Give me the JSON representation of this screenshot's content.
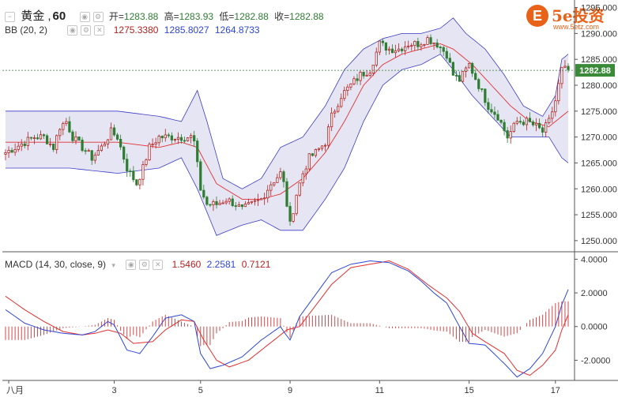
{
  "header": {
    "symbol": "黄金",
    "timeframe": "60",
    "open_label": "开=",
    "open": "1283.88",
    "high_label": "高=",
    "high": "1283.93",
    "low_label": "低=",
    "low": "1282.88",
    "close_label": "收=",
    "close": "1282.88"
  },
  "bb_header": {
    "label": "BB (20, 2)",
    "mid": "1275.3380",
    "upper": "1285.8027",
    "lower": "1264.8733"
  },
  "macd_header": {
    "label": "MACD (14, 30, close, 9)",
    "hist": "1.5460",
    "macd": "2.2581",
    "signal": "0.7121"
  },
  "logo": {
    "text": "5e投资",
    "url": "www.5etz.com",
    "mark": "E"
  },
  "price_tag": "1282.88",
  "colors": {
    "up": "#b22222",
    "down": "#2e7d32",
    "bb_fill": "#dcdcef",
    "bb_band": "#3c3cc8",
    "bb_mid": "#e33030",
    "macd_line": "#2d46d6",
    "signal_line": "#e33030",
    "hist": "#d24848",
    "accent": "#2e7d32"
  },
  "chart_data": [
    {
      "type": "candlestick",
      "yticks": [
        1250,
        1255,
        1260,
        1265,
        1270,
        1275,
        1280,
        1285,
        1290,
        1295
      ],
      "ylim": [
        1248,
        1296
      ],
      "xlabels": [
        {
          "label": "八月",
          "x": 1
        },
        {
          "label": "3",
          "x": 34
        },
        {
          "label": "5",
          "x": 61
        },
        {
          "label": "9",
          "x": 89
        },
        {
          "label": "11",
          "x": 117
        },
        {
          "label": "15",
          "x": 145
        },
        {
          "label": "17",
          "x": 172
        }
      ],
      "last_price": 1282.88,
      "anchors_close": [
        [
          0,
          1267
        ],
        [
          3,
          1268
        ],
        [
          6,
          1269
        ],
        [
          9,
          1270
        ],
        [
          12,
          1270
        ],
        [
          15,
          1268
        ],
        [
          17,
          1272
        ],
        [
          19,
          1273
        ],
        [
          21,
          1270
        ],
        [
          24,
          1268
        ],
        [
          27,
          1266
        ],
        [
          30,
          1268
        ],
        [
          33,
          1271
        ],
        [
          35,
          1270
        ],
        [
          38,
          1264
        ],
        [
          41,
          1261
        ],
        [
          43,
          1264
        ],
        [
          45,
          1268
        ],
        [
          48,
          1270
        ],
        [
          52,
          1270
        ],
        [
          55,
          1270
        ],
        [
          58,
          1270
        ],
        [
          59,
          1269
        ],
        [
          61,
          1260
        ],
        [
          63,
          1257
        ],
        [
          66,
          1257
        ],
        [
          69,
          1258
        ],
        [
          72,
          1257
        ],
        [
          74,
          1256
        ],
        [
          77,
          1257
        ],
        [
          80,
          1258
        ],
        [
          83,
          1261
        ],
        [
          86,
          1263
        ],
        [
          87,
          1261
        ],
        [
          89,
          1253
        ],
        [
          91,
          1259
        ],
        [
          93,
          1263
        ],
        [
          95,
          1266
        ],
        [
          97,
          1267
        ],
        [
          100,
          1269
        ],
        [
          102,
          1274
        ],
        [
          105,
          1278
        ],
        [
          108,
          1280
        ],
        [
          111,
          1282
        ],
        [
          114,
          1283
        ],
        [
          117,
          1288
        ],
        [
          120,
          1287
        ],
        [
          123,
          1287
        ],
        [
          126,
          1288
        ],
        [
          129,
          1288
        ],
        [
          132,
          1289
        ],
        [
          135,
          1288
        ],
        [
          138,
          1286
        ],
        [
          140,
          1282
        ],
        [
          142,
          1281
        ],
        [
          145,
          1284
        ],
        [
          148,
          1280
        ],
        [
          151,
          1276
        ],
        [
          154,
          1274
        ],
        [
          157,
          1270
        ],
        [
          160,
          1273
        ],
        [
          163,
          1273
        ],
        [
          166,
          1272
        ],
        [
          168,
          1271
        ],
        [
          170,
          1273
        ],
        [
          172,
          1277
        ],
        [
          174,
          1283
        ],
        [
          176,
          1283
        ]
      ],
      "bb_upper_anchors": [
        [
          0,
          1275
        ],
        [
          20,
          1275
        ],
        [
          35,
          1275
        ],
        [
          48,
          1274
        ],
        [
          55,
          1273
        ],
        [
          60,
          1279
        ],
        [
          63,
          1273
        ],
        [
          68,
          1262
        ],
        [
          74,
          1260
        ],
        [
          80,
          1262
        ],
        [
          86,
          1268
        ],
        [
          93,
          1270
        ],
        [
          100,
          1276
        ],
        [
          106,
          1283
        ],
        [
          112,
          1287
        ],
        [
          118,
          1289
        ],
        [
          124,
          1290
        ],
        [
          130,
          1290
        ],
        [
          136,
          1291
        ],
        [
          140,
          1293
        ],
        [
          144,
          1290
        ],
        [
          150,
          1287
        ],
        [
          156,
          1282
        ],
        [
          162,
          1276
        ],
        [
          168,
          1274
        ],
        [
          172,
          1278
        ],
        [
          174,
          1285
        ],
        [
          176,
          1286
        ]
      ],
      "bb_mid_anchors": [
        [
          0,
          1269
        ],
        [
          20,
          1269
        ],
        [
          35,
          1269
        ],
        [
          48,
          1268
        ],
        [
          55,
          1269
        ],
        [
          60,
          1268
        ],
        [
          66,
          1261
        ],
        [
          74,
          1258
        ],
        [
          80,
          1258
        ],
        [
          86,
          1259
        ],
        [
          93,
          1262
        ],
        [
          100,
          1267
        ],
        [
          106,
          1273
        ],
        [
          112,
          1280
        ],
        [
          118,
          1284
        ],
        [
          124,
          1286
        ],
        [
          130,
          1287
        ],
        [
          136,
          1288
        ],
        [
          140,
          1287
        ],
        [
          146,
          1284
        ],
        [
          152,
          1280
        ],
        [
          158,
          1276
        ],
        [
          164,
          1273
        ],
        [
          170,
          1272
        ],
        [
          174,
          1274
        ],
        [
          176,
          1275
        ]
      ],
      "bb_lower_anchors": [
        [
          0,
          1264
        ],
        [
          20,
          1264
        ],
        [
          35,
          1263
        ],
        [
          48,
          1264
        ],
        [
          55,
          1266
        ],
        [
          60,
          1260
        ],
        [
          66,
          1251
        ],
        [
          74,
          1253
        ],
        [
          80,
          1254
        ],
        [
          86,
          1252
        ],
        [
          93,
          1252
        ],
        [
          100,
          1258
        ],
        [
          106,
          1264
        ],
        [
          112,
          1273
        ],
        [
          118,
          1280
        ],
        [
          124,
          1283
        ],
        [
          130,
          1284
        ],
        [
          136,
          1286
        ],
        [
          140,
          1283
        ],
        [
          146,
          1278
        ],
        [
          152,
          1274
        ],
        [
          158,
          1270
        ],
        [
          164,
          1270
        ],
        [
          170,
          1270
        ],
        [
          174,
          1266
        ],
        [
          176,
          1265
        ]
      ]
    },
    {
      "type": "line",
      "yticks": [
        -2,
        0,
        2,
        4
      ],
      "ylim": [
        -3.2,
        4.3
      ],
      "macd_anchors": [
        [
          0,
          1.0
        ],
        [
          6,
          0.2
        ],
        [
          12,
          -0.2
        ],
        [
          18,
          -0.4
        ],
        [
          24,
          -0.5
        ],
        [
          28,
          -0.3
        ],
        [
          32,
          0.3
        ],
        [
          34,
          0.1
        ],
        [
          38,
          -1.4
        ],
        [
          42,
          -1.6
        ],
        [
          46,
          -0.6
        ],
        [
          50,
          0.5
        ],
        [
          55,
          0.7
        ],
        [
          59,
          0.3
        ],
        [
          61,
          -1.6
        ],
        [
          64,
          -2.5
        ],
        [
          68,
          -2.3
        ],
        [
          74,
          -1.8
        ],
        [
          80,
          -0.8
        ],
        [
          86,
          0.0
        ],
        [
          87,
          -0.3
        ],
        [
          89,
          -0.8
        ],
        [
          92,
          0.6
        ],
        [
          97,
          1.9
        ],
        [
          102,
          3.2
        ],
        [
          108,
          3.7
        ],
        [
          114,
          3.9
        ],
        [
          120,
          3.8
        ],
        [
          126,
          3.3
        ],
        [
          130,
          2.7
        ],
        [
          134,
          2.0
        ],
        [
          138,
          1.4
        ],
        [
          142,
          0.0
        ],
        [
          145,
          -1.0
        ],
        [
          150,
          -1.1
        ],
        [
          156,
          -2.2
        ],
        [
          160,
          -3.0
        ],
        [
          164,
          -2.5
        ],
        [
          168,
          -1.6
        ],
        [
          172,
          0.0
        ],
        [
          174,
          1.3
        ],
        [
          176,
          2.2
        ]
      ],
      "signal_anchors": [
        [
          0,
          1.8
        ],
        [
          6,
          1.0
        ],
        [
          12,
          0.3
        ],
        [
          18,
          -0.3
        ],
        [
          24,
          -0.5
        ],
        [
          28,
          -0.4
        ],
        [
          32,
          -0.2
        ],
        [
          36,
          -0.4
        ],
        [
          40,
          -1.0
        ],
        [
          46,
          -0.9
        ],
        [
          50,
          -0.2
        ],
        [
          55,
          0.4
        ],
        [
          59,
          0.3
        ],
        [
          62,
          -0.8
        ],
        [
          66,
          -2.0
        ],
        [
          70,
          -2.4
        ],
        [
          76,
          -2.0
        ],
        [
          82,
          -1.1
        ],
        [
          88,
          -0.2
        ],
        [
          92,
          0.0
        ],
        [
          96,
          1.0
        ],
        [
          102,
          2.5
        ],
        [
          108,
          3.5
        ],
        [
          114,
          3.7
        ],
        [
          120,
          3.9
        ],
        [
          126,
          3.4
        ],
        [
          132,
          2.5
        ],
        [
          138,
          1.7
        ],
        [
          142,
          0.9
        ],
        [
          146,
          -0.4
        ],
        [
          150,
          -0.9
        ],
        [
          156,
          -1.6
        ],
        [
          160,
          -2.6
        ],
        [
          164,
          -2.9
        ],
        [
          168,
          -2.3
        ],
        [
          172,
          -1.4
        ],
        [
          174,
          -0.2
        ],
        [
          176,
          0.7
        ]
      ]
    }
  ]
}
